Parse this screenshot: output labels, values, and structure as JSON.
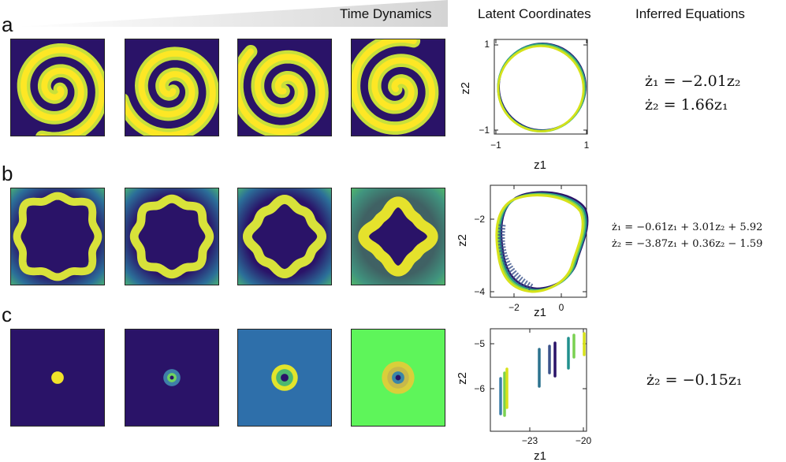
{
  "headers": {
    "time": "Time Dynamics",
    "latent": "Latent Coordinates",
    "equations": "Inferred Equations"
  },
  "rows": [
    {
      "label": "a",
      "equations": [
        "ż₁ = −2.01z₂",
        "ż₂ = 1.66z₁"
      ],
      "plot": {
        "xlabel": "z1",
        "ylabel": "z2",
        "xticks": [
          "−1",
          "1"
        ],
        "yticks": [
          "1",
          "−1"
        ],
        "xlim": [
          -1.1,
          1.1
        ],
        "ylim": [
          -1.1,
          1.1
        ]
      }
    },
    {
      "label": "b",
      "equations": [
        "ż₁ = −0.61z₁ + 3.01z₂ + 5.92",
        "ż₂ = −3.87z₁ + 0.36z₂ − 1.59"
      ],
      "plot": {
        "xlabel": "z1",
        "ylabel": "z2",
        "xticks": [
          "−2",
          "0"
        ],
        "yticks": [
          "−2",
          "−4"
        ],
        "xlim": [
          -2.9,
          0.7
        ],
        "ylim": [
          -4.7,
          -1.2
        ]
      }
    },
    {
      "label": "c",
      "equations": [
        "ż₂ = −0.15z₁"
      ],
      "plot": {
        "xlabel": "z1",
        "ylabel": "z2",
        "xticks": [
          "−23",
          "−20"
        ],
        "yticks": [
          "−5",
          "−6"
        ],
        "xlim": [
          -24.7,
          -19.7
        ],
        "ylim": [
          -7.2,
          -4.6
        ]
      }
    }
  ],
  "colors": {
    "dark": "#2a1368",
    "mid": "#21908d",
    "yellow": "#fde725",
    "green": "#5ef55a",
    "blue": "#2e6faa"
  }
}
